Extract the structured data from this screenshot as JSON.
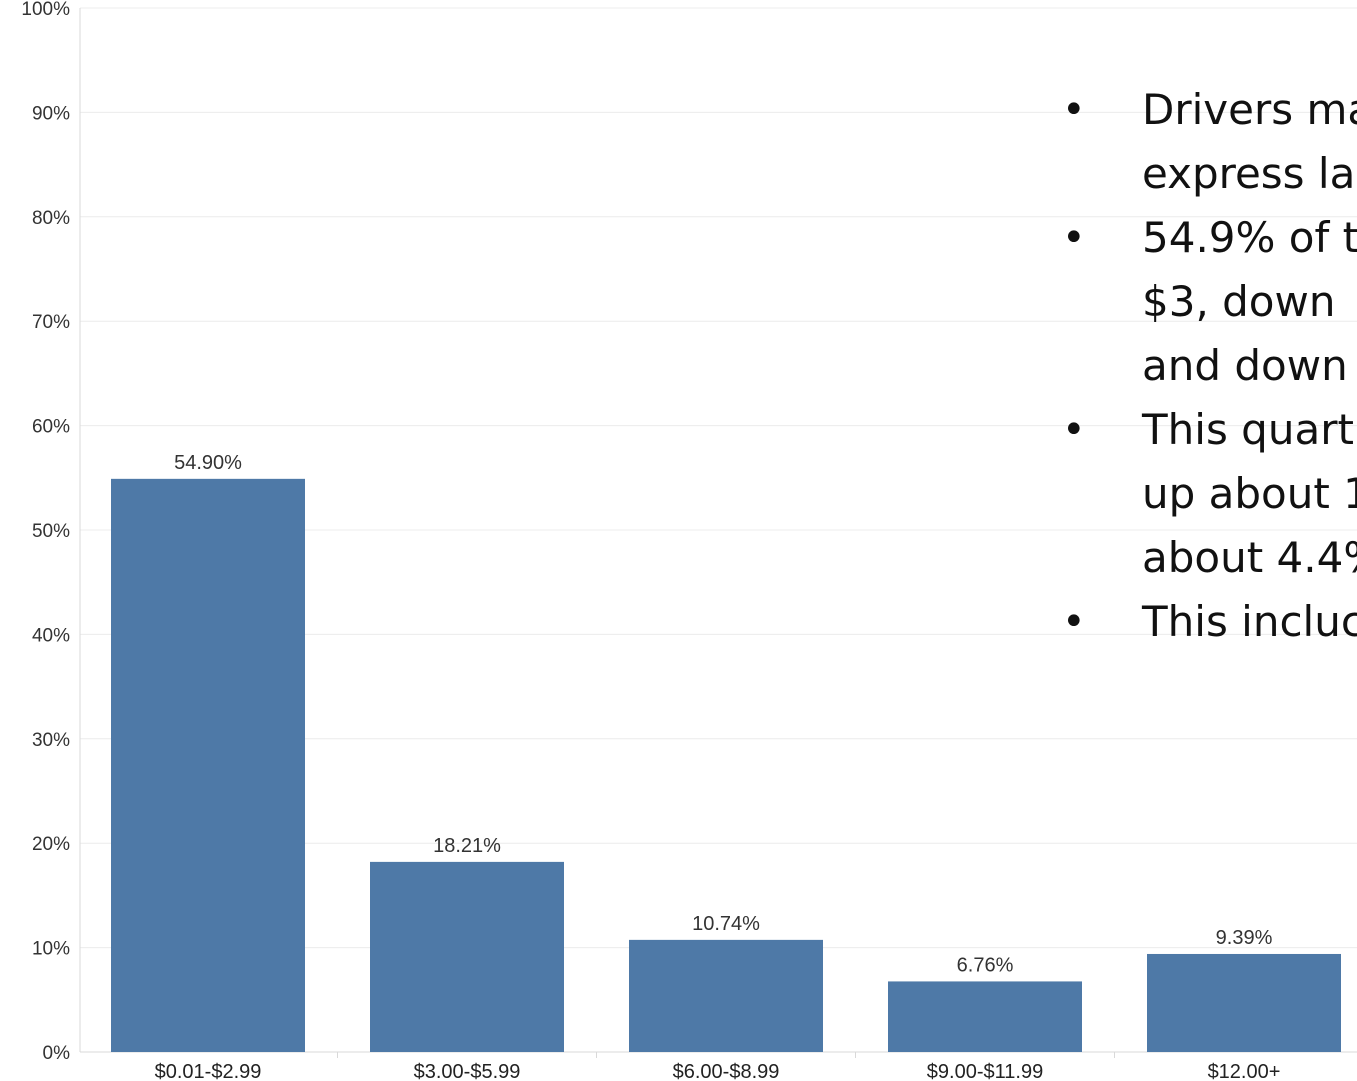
{
  "chart_data": {
    "type": "bar",
    "categories": [
      "$0.01-$2.99",
      "$3.00-$5.99",
      "$6.00-$8.99",
      "$9.00-$11.99",
      "$12.00+"
    ],
    "values": [
      54.9,
      18.21,
      10.74,
      6.76,
      9.39
    ],
    "data_labels": [
      "54.90%",
      "18.21%",
      "10.74%",
      "6.76%",
      "9.39%"
    ],
    "ylim": [
      0,
      100
    ],
    "y_ticks": [
      0,
      10,
      20,
      30,
      40,
      50,
      60,
      70,
      80,
      90,
      100
    ],
    "y_tick_labels": [
      "0%",
      "10%",
      "20%",
      "30%",
      "40%",
      "50%",
      "60%",
      "70%",
      "80%",
      "90%",
      "100%"
    ],
    "grid": true,
    "title": "",
    "xlabel": "",
    "ylabel": "",
    "bar_color": "#4e79a7",
    "gridline_color": "#ececec"
  },
  "callout": {
    "items": [
      "Drivers ma\nexpress la",
      "54.9% of t\n$3, down\nand down",
      "This quart\nup about 1\nabout 4.4%",
      "This incluc"
    ]
  }
}
